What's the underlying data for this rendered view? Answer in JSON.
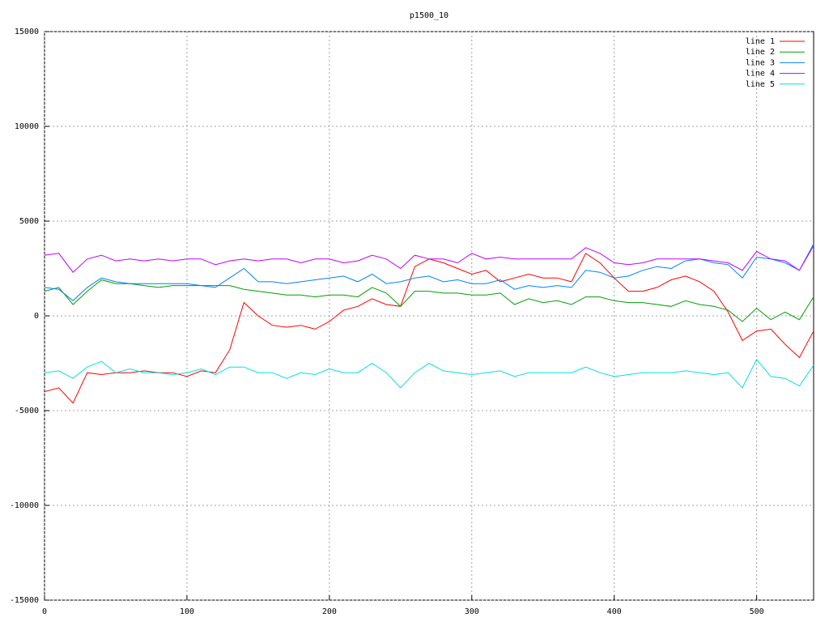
{
  "chart_data": {
    "type": "line",
    "title": "p1500_10",
    "x": [
      0,
      10,
      20,
      30,
      40,
      50,
      60,
      70,
      80,
      90,
      100,
      110,
      120,
      130,
      140,
      150,
      160,
      170,
      180,
      190,
      200,
      210,
      220,
      230,
      240,
      250,
      260,
      270,
      280,
      290,
      300,
      310,
      320,
      330,
      340,
      350,
      360,
      370,
      380,
      390,
      400,
      410,
      420,
      430,
      440,
      450,
      460,
      470,
      480,
      490,
      500,
      510,
      520,
      530,
      540
    ],
    "series": [
      {
        "name": "line 1",
        "color": "#ff0000",
        "values": [
          -4000,
          -3800,
          -4600,
          -3000,
          -3100,
          -3000,
          -3000,
          -2900,
          -3000,
          -3000,
          -3200,
          -2900,
          -3000,
          -1800,
          700,
          0,
          -500,
          -600,
          -500,
          -700,
          -300,
          300,
          500,
          900,
          600,
          500,
          2600,
          3000,
          2800,
          2500,
          2200,
          2400,
          1800,
          2000,
          2200,
          2000,
          2000,
          1800,
          3300,
          2800,
          2000,
          1300,
          1300,
          1500,
          1900,
          2100,
          1800,
          1300,
          200,
          -1300,
          -800,
          -700,
          -1500,
          -2200,
          -800
        ]
      },
      {
        "name": "line 2",
        "color": "#00a000",
        "values": [
          1300,
          1500,
          600,
          1300,
          1900,
          1700,
          1700,
          1600,
          1500,
          1600,
          1600,
          1600,
          1600,
          1600,
          1400,
          1300,
          1200,
          1100,
          1100,
          1000,
          1100,
          1100,
          1000,
          1500,
          1200,
          500,
          1300,
          1300,
          1200,
          1200,
          1100,
          1100,
          1200,
          600,
          900,
          700,
          800,
          600,
          1000,
          1000,
          800,
          700,
          700,
          600,
          500,
          800,
          600,
          500,
          300,
          -300,
          400,
          -200,
          200,
          -200,
          1000
        ]
      },
      {
        "name": "line 3",
        "color": "#0080ff",
        "values": [
          1500,
          1400,
          800,
          1500,
          2000,
          1800,
          1700,
          1700,
          1700,
          1700,
          1700,
          1600,
          1500,
          2000,
          2500,
          1800,
          1800,
          1700,
          1800,
          1900,
          2000,
          2100,
          1800,
          2200,
          1700,
          1800,
          2000,
          2100,
          1800,
          1900,
          1700,
          1700,
          1900,
          1400,
          1600,
          1500,
          1600,
          1500,
          2400,
          2300,
          2000,
          2100,
          2400,
          2600,
          2500,
          2900,
          3000,
          2800,
          2700,
          2000,
          3100,
          3000,
          2800,
          2400,
          3800
        ]
      },
      {
        "name": "line 4",
        "color": "#c000ff",
        "values": [
          3200,
          3300,
          2300,
          3000,
          3200,
          2900,
          3000,
          2900,
          3000,
          2900,
          3000,
          3000,
          2700,
          2900,
          3000,
          2900,
          3000,
          3000,
          2800,
          3000,
          3000,
          2800,
          2900,
          3200,
          3000,
          2500,
          3200,
          3000,
          3000,
          2800,
          3300,
          3000,
          3100,
          3000,
          3000,
          3000,
          3000,
          3000,
          3600,
          3300,
          2800,
          2700,
          2800,
          3000,
          3000,
          3000,
          3000,
          2900,
          2800,
          2400,
          3400,
          3000,
          2900,
          2400,
          3700
        ]
      },
      {
        "name": "line 5",
        "color": "#00e0e0",
        "values": [
          -3000,
          -2900,
          -3300,
          -2700,
          -2400,
          -3000,
          -2800,
          -3000,
          -3000,
          -3100,
          -3000,
          -2800,
          -3100,
          -2700,
          -2700,
          -3000,
          -3000,
          -3300,
          -3000,
          -3100,
          -2800,
          -3000,
          -3000,
          -2500,
          -3000,
          -3800,
          -3000,
          -2500,
          -2900,
          -3000,
          -3100,
          -3000,
          -2900,
          -3200,
          -3000,
          -3000,
          -3000,
          -3000,
          -2700,
          -3000,
          -3200,
          -3100,
          -3000,
          -3000,
          -3000,
          -2900,
          -3000,
          -3100,
          -3000,
          -3800,
          -2300,
          -3200,
          -3300,
          -3700,
          -2600
        ]
      }
    ],
    "xlim": [
      0,
      540
    ],
    "xticks": [
      0,
      100,
      200,
      300,
      400,
      500
    ],
    "ylim": [
      -15000,
      15000
    ],
    "yticks": [
      -15000,
      -10000,
      -5000,
      0,
      5000,
      10000,
      15000
    ],
    "grid": true,
    "legend": "top-right"
  }
}
